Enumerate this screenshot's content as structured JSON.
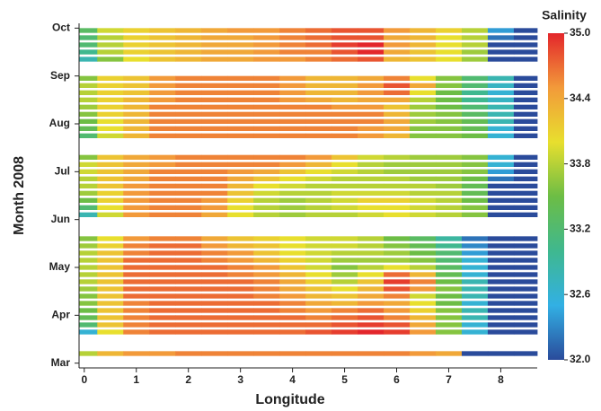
{
  "chart_data": {
    "type": "heatmap",
    "xlabel": "Longitude",
    "ylabel": "Month 2008",
    "colorbar_title": "Salinity",
    "x": [
      0,
      0.5,
      1,
      1.5,
      2,
      2.5,
      3,
      3.5,
      4,
      4.5,
      5,
      5.5,
      6,
      6.5,
      7,
      7.5,
      8,
      8.5
    ],
    "xlim": [
      -0.1,
      8.7
    ],
    "xticks": [
      0,
      1,
      2,
      3,
      4,
      5,
      6,
      7,
      8
    ],
    "ylim": [
      2.9,
      10.1
    ],
    "yticks": [
      {
        "value": 3,
        "label": "Mar"
      },
      {
        "value": 4,
        "label": "Apr"
      },
      {
        "value": 5,
        "label": "May"
      },
      {
        "value": 6,
        "label": "Jun"
      },
      {
        "value": 7,
        "label": "Jul"
      },
      {
        "value": 8,
        "label": "Aug"
      },
      {
        "value": 9,
        "label": "Sep"
      },
      {
        "value": 10,
        "label": "Oct"
      }
    ],
    "zlim": [
      32,
      35
    ],
    "zticks": [
      {
        "value": 32,
        "label": "32.0"
      },
      32.6,
      33.2,
      33.8,
      34.4,
      {
        "value": 35,
        "label": "35.0"
      }
    ],
    "colormap": [
      "#2a4b9b",
      "#32b0e4",
      "#3fb88f",
      "#6cbd45",
      "#e8df2e",
      "#f29a3a",
      "#e3262b"
    ],
    "rows": [
      {
        "y": 3.2,
        "values": [
          33.8,
          34.3,
          34.5,
          34.5,
          34.6,
          34.6,
          34.6,
          34.6,
          34.6,
          34.6,
          34.6,
          34.6,
          34.6,
          34.5,
          34.4,
          32.0,
          32.0,
          32.0
        ]
      },
      {
        "y": 3.65,
        "values": [
          32.6,
          34.0,
          34.6,
          34.7,
          34.7,
          34.7,
          34.7,
          34.7,
          34.7,
          34.8,
          34.9,
          35.0,
          34.9,
          34.5,
          33.6,
          32.6,
          32.0,
          32.0
        ]
      },
      {
        "y": 3.8,
        "values": [
          33.2,
          34.2,
          34.6,
          34.7,
          34.7,
          34.7,
          34.7,
          34.7,
          34.7,
          34.7,
          34.8,
          34.9,
          34.8,
          34.4,
          33.6,
          32.6,
          32.0,
          32.0
        ]
      },
      {
        "y": 3.95,
        "values": [
          33.4,
          34.2,
          34.6,
          34.7,
          34.7,
          34.7,
          34.7,
          34.7,
          34.7,
          34.6,
          34.7,
          34.8,
          34.6,
          34.3,
          33.6,
          32.8,
          32.0,
          32.0
        ]
      },
      {
        "y": 4.1,
        "values": [
          33.5,
          34.2,
          34.6,
          34.7,
          34.7,
          34.7,
          34.7,
          34.7,
          34.6,
          34.5,
          34.6,
          34.7,
          34.5,
          34.1,
          33.6,
          32.8,
          32.0,
          32.0
        ]
      },
      {
        "y": 4.25,
        "values": [
          33.6,
          34.2,
          34.6,
          34.7,
          34.7,
          34.7,
          34.7,
          34.7,
          34.6,
          34.4,
          34.3,
          34.5,
          34.4,
          34.0,
          33.5,
          32.6,
          32.0,
          32.0
        ]
      },
      {
        "y": 4.4,
        "values": [
          33.6,
          34.2,
          34.7,
          34.7,
          34.7,
          34.7,
          34.7,
          34.6,
          34.5,
          34.3,
          34.2,
          34.4,
          34.6,
          33.9,
          33.5,
          32.8,
          32.0,
          32.0
        ]
      },
      {
        "y": 4.55,
        "values": [
          33.7,
          34.2,
          34.7,
          34.7,
          34.7,
          34.7,
          34.7,
          34.6,
          34.4,
          34.2,
          34.0,
          34.3,
          34.8,
          34.5,
          33.6,
          32.8,
          32.0,
          32.0
        ]
      },
      {
        "y": 4.7,
        "values": [
          33.8,
          34.2,
          34.7,
          34.7,
          34.7,
          34.7,
          34.7,
          34.6,
          34.4,
          34.1,
          33.8,
          34.2,
          34.9,
          34.6,
          33.5,
          32.8,
          32.0,
          32.0
        ]
      },
      {
        "y": 4.85,
        "values": [
          33.8,
          34.2,
          34.7,
          34.7,
          34.7,
          34.7,
          34.6,
          34.5,
          34.3,
          34.0,
          33.7,
          34.0,
          34.7,
          34.3,
          33.4,
          32.6,
          32.0,
          32.0
        ]
      },
      {
        "y": 5.0,
        "values": [
          33.8,
          34.2,
          34.7,
          34.7,
          34.7,
          34.7,
          34.6,
          34.5,
          34.2,
          33.9,
          33.6,
          33.8,
          34.0,
          33.8,
          33.3,
          32.6,
          32.0,
          32.0
        ]
      },
      {
        "y": 5.15,
        "values": [
          33.8,
          34.2,
          34.7,
          34.7,
          34.7,
          34.6,
          34.5,
          34.3,
          34.1,
          33.9,
          33.7,
          33.7,
          33.7,
          33.6,
          33.2,
          32.6,
          32.0,
          32.0
        ]
      },
      {
        "y": 5.3,
        "values": [
          33.8,
          34.2,
          34.6,
          34.7,
          34.7,
          34.6,
          34.5,
          34.2,
          34.0,
          33.9,
          33.8,
          33.8,
          33.7,
          33.5,
          33.2,
          32.4,
          32.0,
          32.0
        ]
      },
      {
        "y": 5.45,
        "values": [
          33.7,
          34.1,
          34.6,
          34.7,
          34.7,
          34.5,
          34.3,
          34.2,
          34.0,
          33.9,
          33.9,
          33.8,
          33.6,
          33.4,
          33.0,
          32.3,
          32.0,
          32.0
        ]
      },
      {
        "y": 5.6,
        "values": [
          33.6,
          34.0,
          34.5,
          34.6,
          34.6,
          34.4,
          34.2,
          34.1,
          34.0,
          33.9,
          33.9,
          33.8,
          33.5,
          33.3,
          32.9,
          32.2,
          32.0,
          32.0
        ]
      },
      {
        "y": 6.1,
        "values": [
          32.8,
          33.9,
          34.5,
          34.6,
          34.6,
          34.4,
          34.0,
          33.8,
          33.7,
          33.8,
          33.8,
          33.9,
          34.0,
          33.9,
          33.8,
          33.6,
          32.0,
          32.0
        ]
      },
      {
        "y": 6.25,
        "values": [
          33.2,
          34.0,
          34.5,
          34.6,
          34.6,
          34.5,
          34.0,
          33.8,
          33.7,
          33.8,
          33.9,
          34.0,
          34.0,
          33.9,
          33.8,
          33.6,
          32.0,
          32.0
        ]
      },
      {
        "y": 6.4,
        "values": [
          33.5,
          34.1,
          34.5,
          34.6,
          34.6,
          34.5,
          34.1,
          33.8,
          33.7,
          33.8,
          33.9,
          34.1,
          34.1,
          33.9,
          33.8,
          33.5,
          32.0,
          32.0
        ]
      },
      {
        "y": 6.55,
        "values": [
          33.7,
          34.1,
          34.5,
          34.6,
          34.6,
          34.6,
          34.2,
          33.9,
          33.8,
          33.8,
          33.9,
          33.9,
          33.9,
          33.8,
          33.8,
          33.4,
          32.0,
          32.0
        ]
      },
      {
        "y": 6.7,
        "values": [
          33.8,
          34.2,
          34.5,
          34.6,
          34.6,
          34.6,
          34.3,
          34.0,
          33.9,
          33.8,
          33.8,
          33.8,
          33.8,
          33.8,
          33.7,
          33.4,
          32.0,
          32.0
        ]
      },
      {
        "y": 6.85,
        "values": [
          33.8,
          34.2,
          34.4,
          34.6,
          34.6,
          34.6,
          34.4,
          34.2,
          34.0,
          33.9,
          33.8,
          33.8,
          33.8,
          33.7,
          33.7,
          33.5,
          32.2,
          32.0
        ]
      },
      {
        "y": 7.0,
        "values": [
          33.9,
          34.2,
          34.4,
          34.6,
          34.6,
          34.6,
          34.5,
          34.4,
          34.2,
          34.0,
          33.9,
          33.8,
          33.7,
          33.7,
          33.7,
          33.6,
          32.4,
          32.0
        ]
      },
      {
        "y": 7.15,
        "values": [
          33.9,
          34.2,
          34.4,
          34.5,
          34.6,
          34.6,
          34.6,
          34.6,
          34.5,
          34.3,
          34.0,
          33.8,
          33.7,
          33.7,
          33.7,
          33.6,
          32.6,
          32.0
        ]
      },
      {
        "y": 7.3,
        "values": [
          33.6,
          34.2,
          34.4,
          34.5,
          34.6,
          34.6,
          34.6,
          34.6,
          34.6,
          34.5,
          34.2,
          33.9,
          33.8,
          33.7,
          33.7,
          33.6,
          32.6,
          32.0
        ]
      },
      {
        "y": 7.75,
        "values": [
          33.2,
          33.9,
          34.3,
          34.6,
          34.6,
          34.6,
          34.6,
          34.6,
          34.6,
          34.6,
          34.6,
          34.5,
          34.3,
          33.6,
          33.6,
          33.5,
          32.6,
          32.0
        ]
      },
      {
        "y": 7.9,
        "values": [
          33.4,
          34.0,
          34.3,
          34.6,
          34.6,
          34.6,
          34.6,
          34.6,
          34.6,
          34.6,
          34.6,
          34.5,
          34.4,
          33.6,
          33.6,
          33.4,
          32.6,
          32.0
        ]
      },
      {
        "y": 8.05,
        "values": [
          33.5,
          34.0,
          34.3,
          34.6,
          34.6,
          34.6,
          34.6,
          34.6,
          34.6,
          34.6,
          34.6,
          34.6,
          34.4,
          33.7,
          33.6,
          33.4,
          32.8,
          32.0
        ]
      },
      {
        "y": 8.2,
        "values": [
          33.6,
          34.1,
          34.3,
          34.6,
          34.6,
          34.6,
          34.6,
          34.6,
          34.6,
          34.6,
          34.6,
          34.6,
          34.3,
          33.7,
          33.6,
          33.3,
          32.8,
          32.0
        ]
      },
      {
        "y": 8.35,
        "values": [
          33.7,
          34.1,
          34.3,
          34.6,
          34.6,
          34.6,
          34.6,
          34.6,
          34.6,
          34.6,
          34.5,
          34.5,
          34.2,
          33.7,
          33.5,
          33.2,
          32.8,
          32.0
        ]
      },
      {
        "y": 8.5,
        "values": [
          33.8,
          34.1,
          34.3,
          34.5,
          34.6,
          34.6,
          34.6,
          34.6,
          34.5,
          34.4,
          34.3,
          34.4,
          34.4,
          33.8,
          33.5,
          33.0,
          32.7,
          32.0
        ]
      },
      {
        "y": 8.65,
        "values": [
          33.8,
          34.1,
          34.2,
          34.5,
          34.6,
          34.6,
          34.6,
          34.6,
          34.5,
          34.3,
          34.3,
          34.5,
          34.7,
          34.0,
          33.5,
          33.0,
          32.6,
          32.0
        ]
      },
      {
        "y": 8.8,
        "values": [
          33.8,
          34.1,
          34.2,
          34.5,
          34.6,
          34.6,
          34.6,
          34.6,
          34.5,
          34.3,
          34.3,
          34.5,
          34.8,
          34.4,
          33.6,
          33.2,
          32.7,
          32.0
        ]
      },
      {
        "y": 8.95,
        "values": [
          33.6,
          34.1,
          34.2,
          34.5,
          34.6,
          34.6,
          34.6,
          34.6,
          34.5,
          34.3,
          34.3,
          34.4,
          34.6,
          34.0,
          33.6,
          33.2,
          32.8,
          32.0
        ]
      },
      {
        "y": 9.35,
        "values": [
          32.8,
          33.6,
          34.0,
          34.2,
          34.3,
          34.4,
          34.4,
          34.5,
          34.5,
          34.6,
          34.7,
          34.8,
          34.3,
          34.2,
          34.0,
          33.7,
          32.0,
          32.0
        ]
      },
      {
        "y": 9.5,
        "values": [
          33.0,
          33.8,
          34.1,
          34.2,
          34.3,
          34.4,
          34.4,
          34.5,
          34.6,
          34.6,
          34.8,
          35.0,
          34.4,
          34.2,
          34.0,
          33.7,
          32.0,
          32.0
        ]
      },
      {
        "y": 9.65,
        "values": [
          33.2,
          33.8,
          34.1,
          34.2,
          34.3,
          34.4,
          34.4,
          34.5,
          34.6,
          34.7,
          34.9,
          35.0,
          34.5,
          34.3,
          34.0,
          33.8,
          32.0,
          32.0
        ]
      },
      {
        "y": 9.8,
        "values": [
          33.2,
          33.8,
          34.1,
          34.2,
          34.3,
          34.4,
          34.4,
          34.5,
          34.6,
          34.7,
          34.8,
          34.8,
          34.4,
          34.3,
          34.0,
          33.8,
          32.2,
          32.0
        ]
      },
      {
        "y": 9.95,
        "values": [
          33.3,
          33.9,
          34.1,
          34.2,
          34.3,
          34.4,
          34.5,
          34.5,
          34.6,
          34.7,
          34.8,
          34.8,
          34.5,
          34.3,
          34.1,
          33.8,
          32.4,
          32.0
        ]
      }
    ]
  }
}
